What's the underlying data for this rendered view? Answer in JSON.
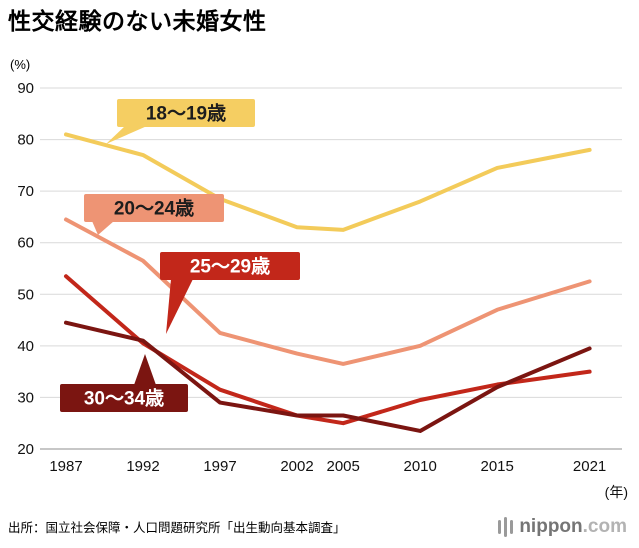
{
  "page": {
    "title": "性交経験のない未婚女性",
    "y_unit": "(%)",
    "x_unit": "(年)",
    "source": "出所：国立社会保障・人口問題研究所「出生動向基本調査」",
    "logo": {
      "name": "nippon",
      "tld": ".com"
    }
  },
  "chart_data": {
    "type": "line",
    "title": "性交経験のない未婚女性",
    "ylabel": "(%)",
    "xlabel": "(年)",
    "grid": true,
    "legend_position": "inline-callouts",
    "ylim": [
      20,
      90
    ],
    "y_ticks": [
      90,
      80,
      70,
      60,
      50,
      40,
      30,
      20
    ],
    "x": [
      1987,
      1992,
      1997,
      2002,
      2005,
      2010,
      2015,
      2021
    ],
    "x_tick_labels": [
      "1987",
      "1992",
      "1997",
      "2002",
      "2005",
      "2010",
      "2015",
      "2021"
    ],
    "series": [
      {
        "name": "18〜19歳",
        "color": "#F3CB5A",
        "label_bg": "#F5CE62",
        "label_color": "#1d1d1d",
        "values": [
          81,
          77,
          68.5,
          63,
          62.5,
          68,
          74.5,
          78
        ]
      },
      {
        "name": "20〜24歳",
        "color": "#EE9474",
        "label_bg": "#EE9474",
        "label_color": "#1d1d1d",
        "values": [
          64.5,
          56.5,
          42.5,
          38.5,
          36.5,
          40,
          47,
          52.5
        ]
      },
      {
        "name": "25〜29歳",
        "color": "#C2271A",
        "label_bg": "#C2271A",
        "label_color": "#ffffff",
        "values": [
          53.5,
          40.5,
          31.5,
          26.5,
          25,
          29.5,
          32.5,
          35
        ]
      },
      {
        "name": "30〜34歳",
        "color": "#7B1511",
        "label_bg": "#7B1511",
        "label_color": "#ffffff",
        "values": [
          44.5,
          41,
          29,
          26.5,
          26.5,
          23.5,
          32,
          39.5
        ]
      }
    ]
  }
}
